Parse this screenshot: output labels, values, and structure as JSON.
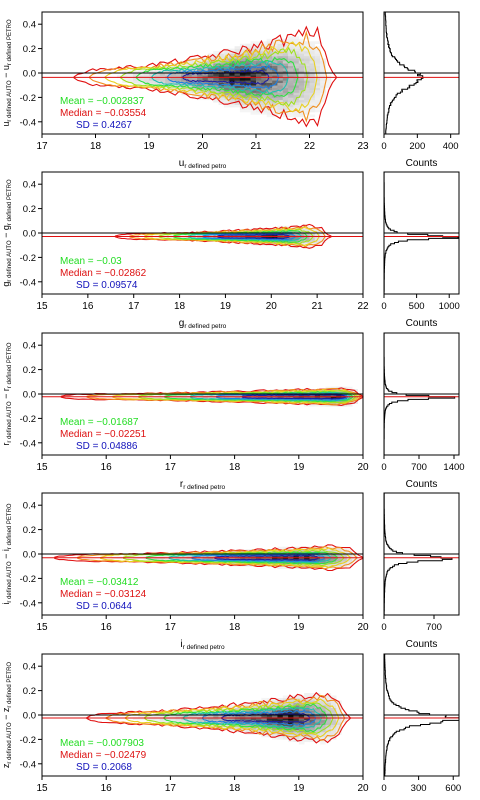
{
  "chart_data": [
    {
      "type": "heatmap",
      "band": "u",
      "xlim": [
        17,
        23
      ],
      "xticks": [
        "17",
        "18",
        "19",
        "20",
        "21",
        "22",
        "23"
      ],
      "ylim": [
        -0.5,
        0.5
      ],
      "yticks": [
        "0.4",
        "0.2",
        "0.0",
        "-0.2",
        "-0.4"
      ],
      "xlabel": {
        "main": "u",
        "sub": "r defined petro"
      },
      "ylabel": {
        "main": "u",
        "sub": "r defined AUTO",
        "main2": "u",
        "sub2": "r defined PETRO"
      },
      "stats": {
        "mean": "Mean = −0.002837",
        "median": "Median = −0.03554",
        "sd": "SD = 0.4267"
      },
      "mean": -0.002837,
      "median": -0.03554,
      "sd": 0.4267,
      "density": {
        "x_peak": 20.7,
        "x_left": 19.0,
        "x_right": 22.2,
        "x_start": 17.6,
        "x_end": 22.5,
        "base_width": 0.05,
        "grow": 0.32
      },
      "histogram": {
        "xlim": [
          0,
          450
        ],
        "xticks": [
          "0",
          "200",
          "400"
        ],
        "peak": 225,
        "width": 0.1,
        "xlabel": "Counts"
      }
    },
    {
      "type": "heatmap",
      "band": "g",
      "xlim": [
        15,
        22
      ],
      "xticks": [
        "15",
        "16",
        "17",
        "18",
        "19",
        "20",
        "21",
        "22"
      ],
      "ylim": [
        -0.5,
        0.5
      ],
      "yticks": [
        "0.4",
        "0.2",
        "0.0",
        "-0.2",
        "-0.4"
      ],
      "xlabel": {
        "main": "g",
        "sub": "r defined petro"
      },
      "ylabel": {
        "main": "g",
        "sub": "r defined AUTO",
        "main2": "g",
        "sub2": "r defined PETRO"
      },
      "stats": {
        "mean": "Mean = −0.03",
        "median": "Median = −0.02862",
        "sd": "SD = 0.09574"
      },
      "mean": -0.03,
      "median": -0.02862,
      "sd": 0.09574,
      "density": {
        "x_peak": 20.0,
        "x_left": 18.4,
        "x_right": 21.1,
        "x_start": 16.6,
        "x_end": 21.3,
        "base_width": 0.015,
        "grow": 0.07
      },
      "histogram": {
        "xlim": [
          0,
          1150
        ],
        "xticks": [
          "0",
          "500",
          "1000"
        ],
        "peak": 1100,
        "width": 0.02,
        "xlabel": "Counts"
      }
    },
    {
      "type": "heatmap",
      "band": "r",
      "xlim": [
        15,
        20
      ],
      "xticks": [
        "15",
        "16",
        "17",
        "18",
        "19",
        "20"
      ],
      "ylim": [
        -0.5,
        0.5
      ],
      "yticks": [
        "0.4",
        "0.2",
        "0.0",
        "-0.2",
        "-0.4"
      ],
      "xlabel": {
        "main": "r",
        "sub": "r defined petro"
      },
      "ylabel": {
        "main": "r",
        "sub": "r defined AUTO",
        "main2": "r",
        "sub2": "r defined PETRO"
      },
      "stats": {
        "mean": "Mean = −0.01687",
        "median": "Median = −0.02251",
        "sd": "SD = 0.04886"
      },
      "mean": -0.01687,
      "median": -0.02251,
      "sd": 0.04886,
      "density": {
        "x_peak": 19.6,
        "x_left": 17.6,
        "x_right": 19.9,
        "x_start": 15.3,
        "x_end": 20.0,
        "base_width": 0.015,
        "grow": 0.05
      },
      "histogram": {
        "xlim": [
          0,
          1500
        ],
        "xticks": [
          "0",
          "700",
          "1400"
        ],
        "peak": 1450,
        "width": 0.015,
        "xlabel": "Counts"
      }
    },
    {
      "type": "heatmap",
      "band": "i",
      "xlim": [
        15,
        20
      ],
      "xticks": [
        "15",
        "16",
        "17",
        "18",
        "19",
        "20"
      ],
      "ylim": [
        -0.5,
        0.5
      ],
      "yticks": [
        "0.4",
        "0.2",
        "0.0",
        "-0.2",
        "-0.4"
      ],
      "xlabel": {
        "main": "i",
        "sub": "r defined petro"
      },
      "ylabel": {
        "main": "i",
        "sub": "r defined AUTO",
        "main2": "i",
        "sub2": "r defined PETRO"
      },
      "stats": {
        "mean": "Mean = −0.03412",
        "median": "Median = −0.03124",
        "sd": "SD = 0.0644"
      },
      "mean": -0.03412,
      "median": -0.03124,
      "sd": 0.0644,
      "density": {
        "x_peak": 19.0,
        "x_left": 17.4,
        "x_right": 19.8,
        "x_start": 15.2,
        "x_end": 20.0,
        "base_width": 0.02,
        "grow": 0.07
      },
      "histogram": {
        "xlim": [
          0,
          1050
        ],
        "xticks": [
          "0",
          "700"
        ],
        "peak": 1000,
        "width": 0.025,
        "xlabel": "Counts"
      }
    },
    {
      "type": "heatmap",
      "band": "z",
      "xlim": [
        15,
        20
      ],
      "xticks": [
        "15",
        "16",
        "17",
        "18",
        "19",
        "20"
      ],
      "ylim": [
        -0.5,
        0.5
      ],
      "yticks": [
        "0.4",
        "0.2",
        "0.0",
        "-0.2",
        "-0.4"
      ],
      "xlabel": {
        "main": "z",
        "sub": "r defined petro"
      },
      "ylabel": {
        "main": "z",
        "sub": "r defined AUTO",
        "main2": "z",
        "sub2": "r defined PETRO"
      },
      "stats": {
        "mean": "Mean = −0.007903",
        "median": "Median = −0.02479",
        "sd": "SD = 0.2068"
      },
      "mean": -0.007903,
      "median": -0.02479,
      "sd": 0.2068,
      "density": {
        "x_peak": 18.9,
        "x_left": 17.3,
        "x_right": 19.6,
        "x_start": 15.7,
        "x_end": 19.8,
        "base_width": 0.03,
        "grow": 0.17
      },
      "histogram": {
        "xlim": [
          0,
          650
        ],
        "xticks": [
          "0",
          "300",
          "600"
        ],
        "peak": 630,
        "width": 0.05,
        "xlabel": "Counts"
      }
    }
  ],
  "colors": {
    "mean": "#22dd22",
    "median": "#dd1111",
    "sd": "#1111bb",
    "contours": [
      "#e01010",
      "#f09020",
      "#e8d020",
      "#a0e020",
      "#30e040",
      "#20c0b0",
      "#2080e0",
      "#2020a0"
    ],
    "zero_line": "#000000",
    "median_line": "#e01010"
  }
}
